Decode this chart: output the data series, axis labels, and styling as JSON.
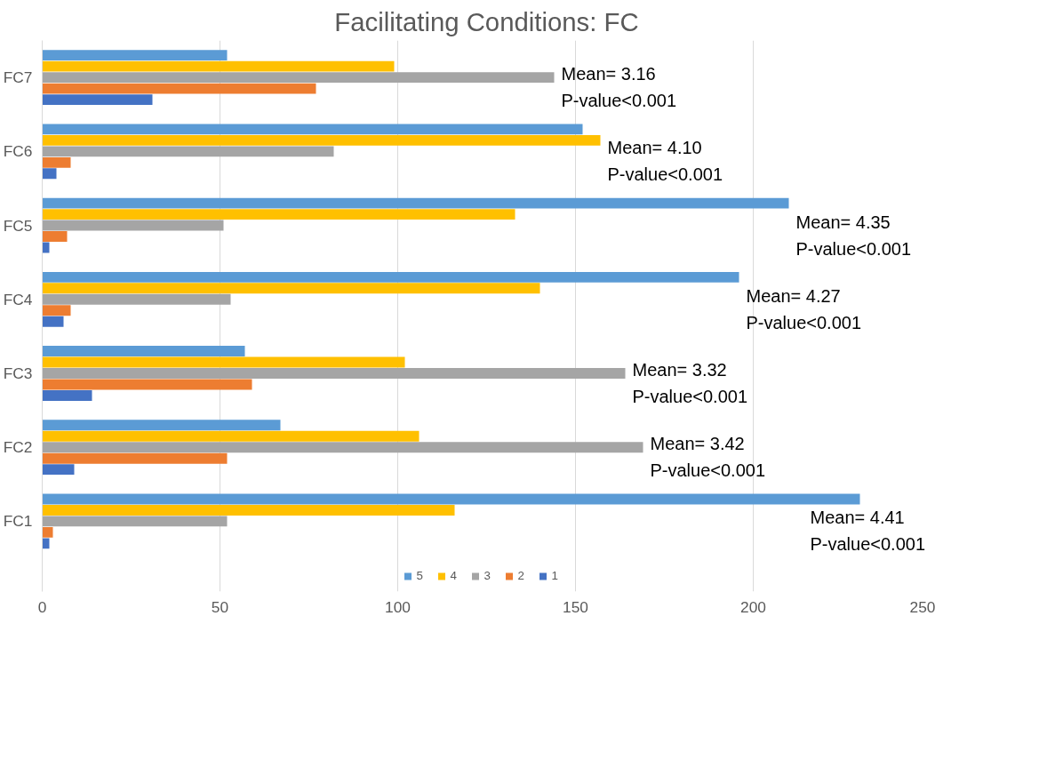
{
  "chart_data": {
    "type": "bar",
    "orientation": "horizontal",
    "title": "Facilitating Conditions: FC",
    "categories": [
      "FC7",
      "FC6",
      "FC5",
      "FC4",
      "FC3",
      "FC2",
      "FC1"
    ],
    "series": [
      {
        "name": "5",
        "color": "#5b9bd5",
        "values": [
          52,
          152,
          210,
          196,
          57,
          67,
          230
        ]
      },
      {
        "name": "4",
        "color": "#ffc000",
        "values": [
          99,
          157,
          133,
          140,
          102,
          106,
          116
        ]
      },
      {
        "name": "3",
        "color": "#a5a5a5",
        "values": [
          144,
          82,
          51,
          53,
          164,
          169,
          52
        ]
      },
      {
        "name": "2",
        "color": "#ed7d31",
        "values": [
          77,
          8,
          7,
          8,
          59,
          52,
          3
        ]
      },
      {
        "name": "1",
        "color": "#4472c4",
        "values": [
          31,
          4,
          2,
          6,
          14,
          9,
          2
        ]
      }
    ],
    "xlim": [
      0,
      250
    ],
    "xticks": [
      0,
      50,
      100,
      150,
      200,
      250
    ],
    "grid": "x",
    "legend": "bottom",
    "annotations": [
      "Mean= 3.16\nP-value<0.001",
      "Mean= 4.10\nP-value<0.001",
      "Mean= 4.35\nP-value<0.001",
      "Mean= 4.27\nP-value<0.001",
      "Mean= 3.32\nP-value<0.001",
      "Mean= 3.42\nP-value<0.001",
      "Mean= 4.41\nP-value<0.001"
    ]
  }
}
